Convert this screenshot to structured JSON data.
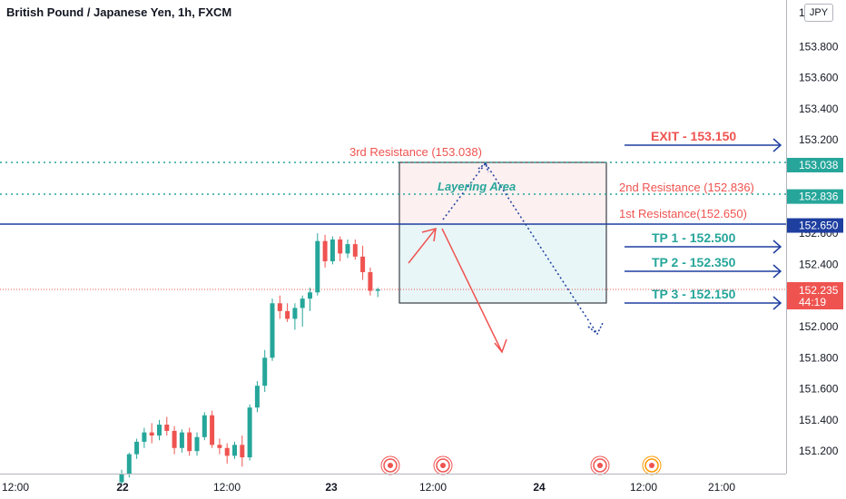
{
  "header": {
    "title": "British Pound / Japanese Yen, 1h, FXCM",
    "currency": "JPY"
  },
  "price_axis": {
    "ticks": [
      "153.800",
      "153.600",
      "153.400",
      "153.200",
      "152.600",
      "152.400",
      "152.000",
      "151.800",
      "151.600",
      "151.400",
      "151.200"
    ],
    "tick_values": [
      153.8,
      153.6,
      153.4,
      153.2,
      152.6,
      152.4,
      152.0,
      151.8,
      151.6,
      151.4,
      151.2
    ],
    "top_partial_label": "15 0",
    "level_tags": [
      {
        "label": "153.038",
        "value": 153.038,
        "color": "#26a69a"
      },
      {
        "label": "152.836",
        "value": 152.836,
        "color": "#26a69a"
      },
      {
        "label": "152.650",
        "value": 152.65,
        "color": "#1e3fa0"
      }
    ],
    "last_price": {
      "price": "152.235",
      "countdown": "44:19",
      "value": 152.235,
      "color": "#ef5350"
    }
  },
  "time_axis": {
    "labels": [
      "12:00",
      "22",
      "12:00",
      "23",
      "12:00",
      "24",
      "12:00",
      "21:00"
    ],
    "bold": [
      false,
      true,
      false,
      true,
      false,
      true,
      false,
      false
    ]
  },
  "annotations": {
    "exit": "EXIT - 153.150",
    "tp1": "TP 1 - 152.500",
    "tp2": "TP 2 - 152.350",
    "tp3": "TP 3 - 152.150",
    "res3": "3rd Resistance (153.038)",
    "res2": "2nd Resistance (152.836)",
    "res1": "1st Resistance(152.650)",
    "layering": "Layering Area"
  },
  "colors": {
    "bull": "#26a69a",
    "bear": "#ef5350",
    "resistance_line": "#26a69a",
    "support_line": "#1e3fa0",
    "arrow_blue": "#1e3fa0",
    "arrow_red": "#ef5350",
    "pink_zone": "#fdf0f0",
    "blue_zone": "#e8f6f8"
  },
  "event_markers": [
    {
      "type": "red"
    },
    {
      "type": "red"
    },
    {
      "type": "red"
    },
    {
      "type": "orange"
    }
  ],
  "chart_data": {
    "type": "candlestick",
    "symbol": "GBPJPY",
    "timeframe": "1h",
    "ylim": [
      151.0,
      154.05
    ],
    "candles": [
      {
        "o": 151.0,
        "h": 151.08,
        "l": 150.98,
        "c": 151.05
      },
      {
        "o": 151.05,
        "h": 151.19,
        "l": 151.03,
        "c": 151.18
      },
      {
        "o": 151.18,
        "h": 151.28,
        "l": 151.15,
        "c": 151.26
      },
      {
        "o": 151.26,
        "h": 151.35,
        "l": 151.22,
        "c": 151.32
      },
      {
        "o": 151.32,
        "h": 151.38,
        "l": 151.25,
        "c": 151.3
      },
      {
        "o": 151.3,
        "h": 151.4,
        "l": 151.27,
        "c": 151.37
      },
      {
        "o": 151.37,
        "h": 151.42,
        "l": 151.3,
        "c": 151.33
      },
      {
        "o": 151.33,
        "h": 151.36,
        "l": 151.18,
        "c": 151.22
      },
      {
        "o": 151.22,
        "h": 151.34,
        "l": 151.19,
        "c": 151.32
      },
      {
        "o": 151.32,
        "h": 151.35,
        "l": 151.17,
        "c": 151.2
      },
      {
        "o": 151.2,
        "h": 151.32,
        "l": 151.17,
        "c": 151.29
      },
      {
        "o": 151.29,
        "h": 151.45,
        "l": 151.27,
        "c": 151.43
      },
      {
        "o": 151.43,
        "h": 151.46,
        "l": 151.22,
        "c": 151.24
      },
      {
        "o": 151.24,
        "h": 151.28,
        "l": 151.18,
        "c": 151.22
      },
      {
        "o": 151.22,
        "h": 151.25,
        "l": 151.12,
        "c": 151.17
      },
      {
        "o": 151.17,
        "h": 151.26,
        "l": 151.15,
        "c": 151.24
      },
      {
        "o": 151.24,
        "h": 151.3,
        "l": 151.1,
        "c": 151.16
      },
      {
        "o": 151.16,
        "h": 151.5,
        "l": 151.14,
        "c": 151.48
      },
      {
        "o": 151.48,
        "h": 151.65,
        "l": 151.45,
        "c": 151.62
      },
      {
        "o": 151.62,
        "h": 151.85,
        "l": 151.58,
        "c": 151.8
      },
      {
        "o": 151.8,
        "h": 152.18,
        "l": 151.78,
        "c": 152.15
      },
      {
        "o": 152.15,
        "h": 152.2,
        "l": 152.05,
        "c": 152.1
      },
      {
        "o": 152.1,
        "h": 152.15,
        "l": 152.03,
        "c": 152.05
      },
      {
        "o": 152.05,
        "h": 152.15,
        "l": 151.98,
        "c": 152.12
      },
      {
        "o": 152.12,
        "h": 152.2,
        "l": 152.0,
        "c": 152.18
      },
      {
        "o": 152.18,
        "h": 152.25,
        "l": 152.1,
        "c": 152.22
      },
      {
        "o": 152.22,
        "h": 152.6,
        "l": 152.2,
        "c": 152.55
      },
      {
        "o": 152.55,
        "h": 152.59,
        "l": 152.38,
        "c": 152.42
      },
      {
        "o": 152.42,
        "h": 152.58,
        "l": 152.4,
        "c": 152.56
      },
      {
        "o": 152.56,
        "h": 152.58,
        "l": 152.42,
        "c": 152.47
      },
      {
        "o": 152.47,
        "h": 152.56,
        "l": 152.44,
        "c": 152.53
      },
      {
        "o": 152.53,
        "h": 152.56,
        "l": 152.43,
        "c": 152.45
      },
      {
        "o": 152.45,
        "h": 152.52,
        "l": 152.3,
        "c": 152.35
      },
      {
        "o": 152.35,
        "h": 152.38,
        "l": 152.2,
        "c": 152.23
      },
      {
        "o": 152.23,
        "h": 152.25,
        "l": 152.19,
        "c": 152.24
      }
    ]
  }
}
